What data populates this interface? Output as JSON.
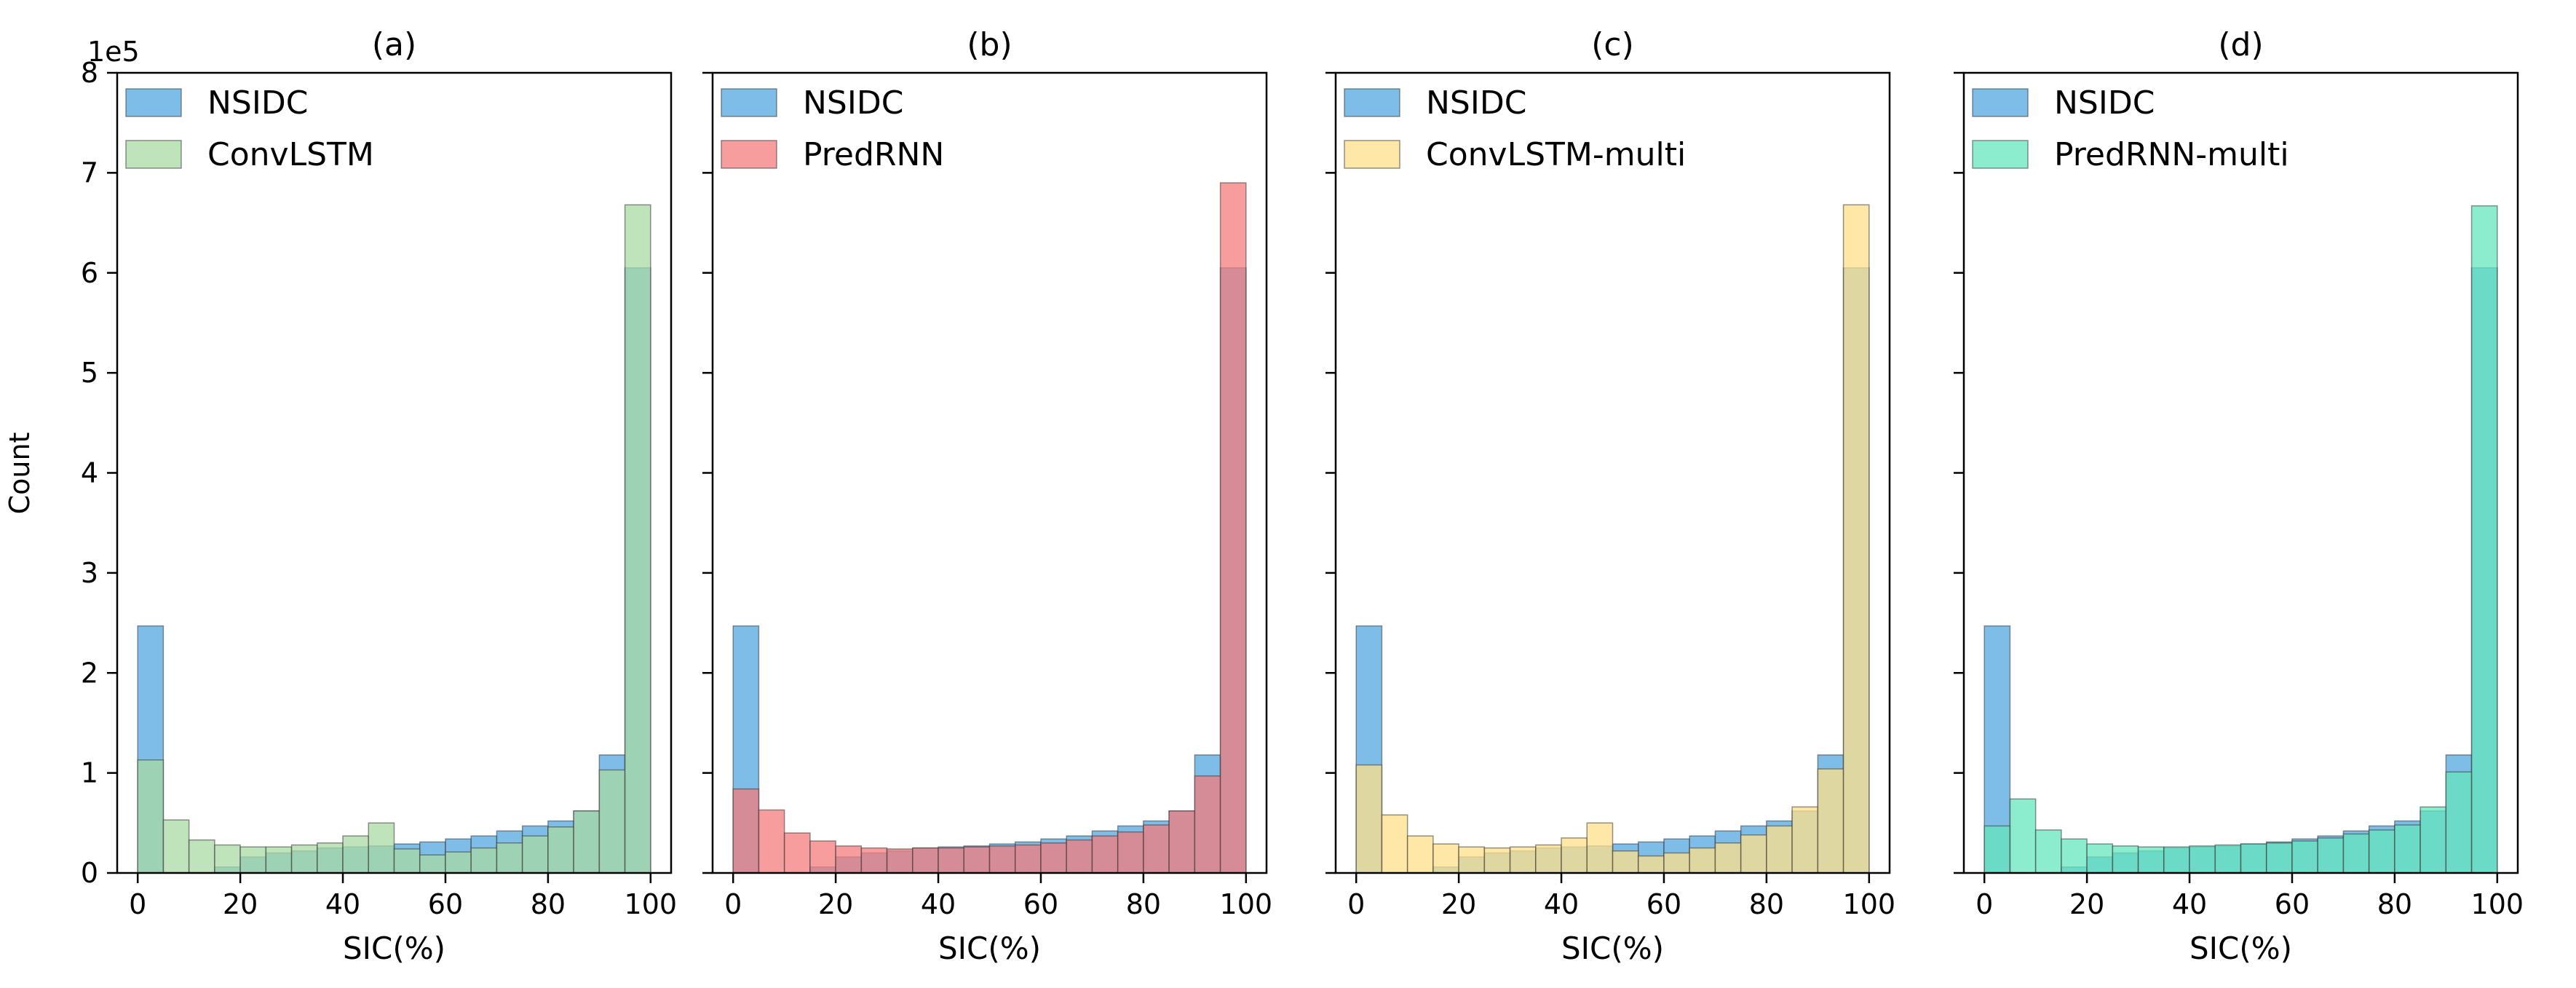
{
  "figure": {
    "ylabel": "Count",
    "offset_label": "1e5",
    "y_ticks": [
      "0",
      "1",
      "2",
      "3",
      "4",
      "5",
      "6",
      "7",
      "8"
    ],
    "x_ticks": [
      "0",
      "20",
      "40",
      "60",
      "80",
      "100"
    ]
  },
  "chart_data": [
    {
      "type": "bar",
      "title": "(a)",
      "xlabel": "SIC(%)",
      "ylabel": "Count",
      "xlim": [
        -4,
        104
      ],
      "ylim": [
        0,
        800000
      ],
      "bin_edges": [
        0,
        5,
        10,
        15,
        20,
        25,
        30,
        35,
        40,
        45,
        50,
        55,
        60,
        65,
        70,
        75,
        80,
        85,
        90,
        95,
        100
      ],
      "legend": {
        "placement": "top-left"
      },
      "series": [
        {
          "name": "NSIDC",
          "color": "#5dade2",
          "opacity": 0.8,
          "values": [
            247000,
            0,
            0,
            6000,
            16000,
            20000,
            22000,
            25000,
            26000,
            27000,
            29000,
            31000,
            34000,
            37000,
            42000,
            47000,
            52000,
            62000,
            118000,
            605000
          ]
        },
        {
          "name": "ConvLSTM",
          "color": "#a9d9a3",
          "opacity": 0.75,
          "values": [
            113000,
            53000,
            33000,
            28000,
            26000,
            26000,
            28000,
            30000,
            37000,
            50000,
            24000,
            18000,
            21000,
            25000,
            30000,
            37000,
            46000,
            62000,
            103000,
            668000
          ]
        }
      ]
    },
    {
      "type": "bar",
      "title": "(b)",
      "xlabel": "SIC(%)",
      "ylabel": "",
      "xlim": [
        -4,
        104
      ],
      "ylim": [
        0,
        800000
      ],
      "bin_edges": [
        0,
        5,
        10,
        15,
        20,
        25,
        30,
        35,
        40,
        45,
        50,
        55,
        60,
        65,
        70,
        75,
        80,
        85,
        90,
        95,
        100
      ],
      "legend": {
        "placement": "top-left"
      },
      "series": [
        {
          "name": "NSIDC",
          "color": "#5dade2",
          "opacity": 0.8,
          "values": [
            247000,
            0,
            0,
            6000,
            16000,
            20000,
            22000,
            25000,
            26000,
            27000,
            29000,
            31000,
            34000,
            37000,
            42000,
            47000,
            52000,
            62000,
            118000,
            605000
          ]
        },
        {
          "name": "PredRNN",
          "color": "#f47c7c",
          "opacity": 0.75,
          "values": [
            84000,
            63000,
            40000,
            32000,
            27000,
            25000,
            24000,
            25000,
            25000,
            26000,
            27000,
            28000,
            30000,
            33000,
            37000,
            41000,
            48000,
            62000,
            97000,
            690000
          ]
        }
      ]
    },
    {
      "type": "bar",
      "title": "(c)",
      "xlabel": "SIC(%)",
      "ylabel": "",
      "xlim": [
        -4,
        104
      ],
      "ylim": [
        0,
        800000
      ],
      "bin_edges": [
        0,
        5,
        10,
        15,
        20,
        25,
        30,
        35,
        40,
        45,
        50,
        55,
        60,
        65,
        70,
        75,
        80,
        85,
        90,
        95,
        100
      ],
      "legend": {
        "placement": "top-left"
      },
      "series": [
        {
          "name": "NSIDC",
          "color": "#5dade2",
          "opacity": 0.8,
          "values": [
            247000,
            0,
            0,
            6000,
            16000,
            20000,
            22000,
            25000,
            26000,
            27000,
            29000,
            31000,
            34000,
            37000,
            42000,
            47000,
            52000,
            62000,
            118000,
            605000
          ]
        },
        {
          "name": "ConvLSTM-multi",
          "color": "#ffe08a",
          "opacity": 0.75,
          "values": [
            108000,
            58000,
            37000,
            29000,
            26000,
            25000,
            26000,
            28000,
            35000,
            50000,
            22000,
            17000,
            20000,
            25000,
            30000,
            38000,
            47000,
            66000,
            104000,
            668000
          ]
        }
      ]
    },
    {
      "type": "bar",
      "title": "(d)",
      "xlabel": "SIC(%)",
      "ylabel": "",
      "xlim": [
        -4,
        104
      ],
      "ylim": [
        0,
        800000
      ],
      "bin_edges": [
        0,
        5,
        10,
        15,
        20,
        25,
        30,
        35,
        40,
        45,
        50,
        55,
        60,
        65,
        70,
        75,
        80,
        85,
        90,
        95,
        100
      ],
      "legend": {
        "placement": "top-left"
      },
      "series": [
        {
          "name": "NSIDC",
          "color": "#5dade2",
          "opacity": 0.8,
          "values": [
            247000,
            0,
            0,
            6000,
            16000,
            20000,
            22000,
            25000,
            26000,
            27000,
            29000,
            31000,
            34000,
            37000,
            42000,
            47000,
            52000,
            62000,
            118000,
            605000
          ]
        },
        {
          "name": "PredRNN-multi",
          "color": "#66e6bd",
          "opacity": 0.75,
          "values": [
            47000,
            74000,
            43000,
            34000,
            29000,
            27000,
            26000,
            26000,
            27000,
            28000,
            29000,
            30000,
            32000,
            35000,
            39000,
            43000,
            48000,
            66000,
            101000,
            667000
          ]
        }
      ]
    }
  ]
}
